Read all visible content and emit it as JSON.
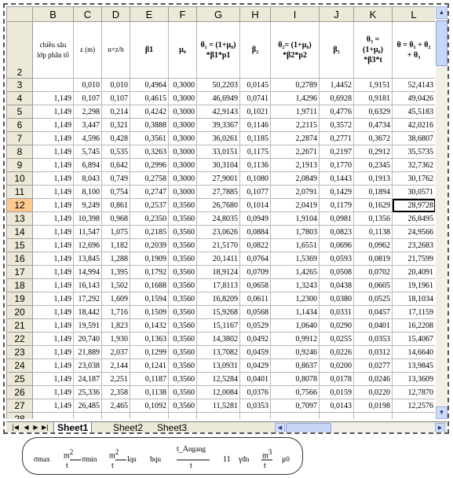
{
  "spreadsheet": {
    "columns": [
      "B",
      "C",
      "D",
      "E",
      "F",
      "G",
      "H",
      "I",
      "J",
      "K",
      "L"
    ],
    "header_row_number": "2",
    "headers": [
      "chiều sâu lớp phân tố",
      "z (m)",
      "n=z/b",
      "β1",
      "μ₀",
      "θ₁ = (1+μ₀) *β1*p1",
      "β₂",
      "θ₂= (1+μ₀) *β2*p2",
      "β₃",
      "θ₃ = (1+μ₀) *β3*t",
      "θ = θ₁ + θ₂ + θ₃"
    ],
    "active_row": "12",
    "rows": [
      {
        "n": "3",
        "c": [
          "",
          "0,010",
          "0,010",
          "0,4964",
          "0,3000",
          "50,2203",
          "0,0145",
          "0,2789",
          "1,4452",
          "1,9151",
          "52,4143"
        ]
      },
      {
        "n": "4",
        "c": [
          "1,149",
          "0,107",
          "0,107",
          "0,4615",
          "0,3000",
          "46,6949",
          "0,0741",
          "1,4296",
          "0,6928",
          "0,9181",
          "49,0426"
        ]
      },
      {
        "n": "5",
        "c": [
          "1,149",
          "2,298",
          "0,214",
          "0,4242",
          "0,3000",
          "42,9143",
          "0,1021",
          "1,9711",
          "0,4776",
          "0,6329",
          "45,5183"
        ]
      },
      {
        "n": "6",
        "c": [
          "1,149",
          "3,447",
          "0,321",
          "0,3888",
          "0,3000",
          "39,3367",
          "0,1146",
          "2,2115",
          "0,3572",
          "0,4734",
          "42,0216"
        ]
      },
      {
        "n": "7",
        "c": [
          "1,149",
          "4,596",
          "0,428",
          "0,3561",
          "0,3000",
          "36,0261",
          "0,1185",
          "2,2874",
          "0,2771",
          "0,3672",
          "38,6807"
        ]
      },
      {
        "n": "8",
        "c": [
          "1,149",
          "5,745",
          "0,535",
          "0,3263",
          "0,3000",
          "33,0151",
          "0,1175",
          "2,2671",
          "0,2197",
          "0,2912",
          "35,5735"
        ]
      },
      {
        "n": "9",
        "c": [
          "1,149",
          "6,894",
          "0,642",
          "0,2996",
          "0,3000",
          "30,3104",
          "0,1136",
          "2,1913",
          "0,1770",
          "0,2345",
          "32,7362"
        ]
      },
      {
        "n": "10",
        "c": [
          "1,149",
          "8,043",
          "0,749",
          "0,2758",
          "0,3000",
          "27,9001",
          "0,1080",
          "2,0849",
          "0,1443",
          "0,1913",
          "30,1762"
        ]
      },
      {
        "n": "11",
        "c": [
          "1,149",
          "8,100",
          "0,754",
          "0,2747",
          "0,3000",
          "27,7885",
          "0,1077",
          "2,0791",
          "0,1429",
          "0,1894",
          "30,0571"
        ]
      },
      {
        "n": "12",
        "c": [
          "1,149",
          "9,249",
          "0,861",
          "0,2537",
          "0,3560",
          "26,7680",
          "0,1014",
          "2,0419",
          "0,1179",
          "0,1629",
          "28,9728"
        ]
      },
      {
        "n": "13",
        "c": [
          "1,149",
          "10,398",
          "0,968",
          "0,2350",
          "0,3560",
          "24,8035",
          "0,0949",
          "1,9104",
          "0,0981",
          "0,1356",
          "26,8495"
        ]
      },
      {
        "n": "14",
        "c": [
          "1,149",
          "11,547",
          "1,075",
          "0,2185",
          "0,3560",
          "23,0626",
          "0,0884",
          "1,7803",
          "0,0823",
          "0,1138",
          "24,9566"
        ]
      },
      {
        "n": "15",
        "c": [
          "1,149",
          "12,696",
          "1,182",
          "0,2039",
          "0,3560",
          "21,5170",
          "0,0822",
          "1,6551",
          "0,0696",
          "0,0962",
          "23,2683"
        ]
      },
      {
        "n": "16",
        "c": [
          "1,149",
          "13,845",
          "1,288",
          "0,1909",
          "0,3560",
          "20,1411",
          "0,0764",
          "1,5369",
          "0,0593",
          "0,0819",
          "21,7599"
        ]
      },
      {
        "n": "17",
        "c": [
          "1,149",
          "14,994",
          "1,395",
          "0,1792",
          "0,3560",
          "18,9124",
          "0,0709",
          "1,4265",
          "0,0508",
          "0,0702",
          "20,4091"
        ]
      },
      {
        "n": "18",
        "c": [
          "1,149",
          "16,143",
          "1,502",
          "0,1688",
          "0,3560",
          "17,8113",
          "0,0658",
          "1,3243",
          "0,0438",
          "0,0605",
          "19,1961"
        ]
      },
      {
        "n": "19",
        "c": [
          "1,149",
          "17,292",
          "1,609",
          "0,1594",
          "0,3560",
          "16,8209",
          "0,0611",
          "1,2300",
          "0,0380",
          "0,0525",
          "18,1034"
        ]
      },
      {
        "n": "20",
        "c": [
          "1,149",
          "18,442",
          "1,716",
          "0,1509",
          "0,3560",
          "15,9268",
          "0,0568",
          "1,1434",
          "0,0331",
          "0,0457",
          "17,1159"
        ]
      },
      {
        "n": "21",
        "c": [
          "1,149",
          "19,591",
          "1,823",
          "0,1432",
          "0,3560",
          "15,1167",
          "0,0529",
          "1,0640",
          "0,0290",
          "0,0401",
          "16,2208"
        ]
      },
      {
        "n": "22",
        "c": [
          "1,149",
          "20,740",
          "1,930",
          "0,1363",
          "0,3560",
          "14,3802",
          "0,0492",
          "0,9912",
          "0,0255",
          "0,0353",
          "15,4067"
        ]
      },
      {
        "n": "23",
        "c": [
          "1,149",
          "21,889",
          "2,037",
          "0,1299",
          "0,3560",
          "13,7082",
          "0,0459",
          "0,9246",
          "0,0226",
          "0,0312",
          "14,6640"
        ]
      },
      {
        "n": "24",
        "c": [
          "1,149",
          "23,038",
          "2,144",
          "0,1241",
          "0,3560",
          "13,0931",
          "0,0429",
          "0,8637",
          "0,0200",
          "0,0277",
          "13,9845"
        ]
      },
      {
        "n": "25",
        "c": [
          "1,149",
          "24,187",
          "2,251",
          "0,1187",
          "0,3560",
          "12,5284",
          "0,0401",
          "0,8078",
          "0,0178",
          "0,0246",
          "13,3609"
        ]
      },
      {
        "n": "26",
        "c": [
          "1,149",
          "25,336",
          "2,358",
          "0,1138",
          "0,3560",
          "12,0084",
          "0,0376",
          "0,7566",
          "0,0159",
          "0,0220",
          "12,7870"
        ]
      },
      {
        "n": "27",
        "c": [
          "1,149",
          "26,485",
          "2,465",
          "0,1092",
          "0,3560",
          "11,5281",
          "0,0353",
          "0,7097",
          "0,0143",
          "0,0198",
          "12,2576"
        ]
      },
      {
        "n": "28",
        "c": [
          "",
          "",
          "",
          "",
          "",
          "",
          "",
          "",
          "",
          "",
          ""
        ]
      }
    ]
  },
  "tabs": [
    "Sheet1",
    "Sheet2",
    "Sheet3"
  ],
  "active_tab": "Sheet1",
  "formula": {
    "sigma_max": "σ",
    "sigma_max_sub": "max",
    "m2_a": "m",
    "sq_a": "2",
    "t_a": "t",
    "sigma_min": "σ",
    "sigma_min_sub": "min",
    "m2_b": "m",
    "sq_b": "2",
    "t_b": "t",
    "l": "l",
    "l_sub": "qu",
    "b": "b",
    "b_sub": "qu",
    "t_A": "t_A",
    "t_A_sub": "ngang",
    "t_c": "t",
    "eleven": "11",
    "gamma": "γ",
    "gamma_sub": "đn",
    "m3": "m",
    "cube": "3",
    "t_d": "t",
    "mu": "μ",
    "mu_sub": "0"
  }
}
